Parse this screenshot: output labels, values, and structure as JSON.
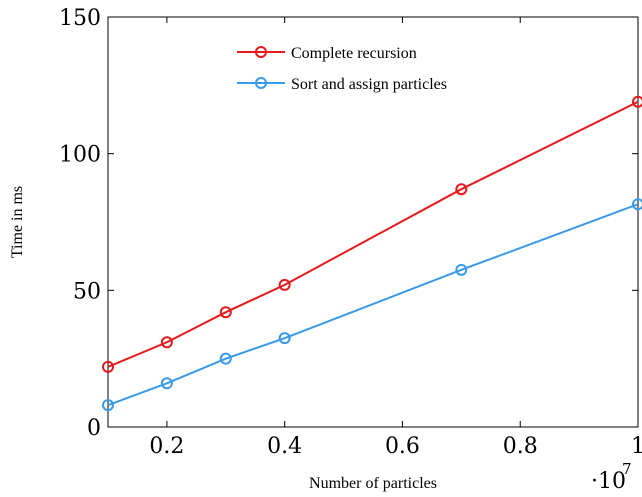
{
  "chart_data": {
    "type": "line",
    "title": "",
    "xlabel": "Number of particles",
    "ylabel": "Time in ms",
    "x_multiplier": {
      "base": "·10",
      "exponent": "7"
    },
    "xlim": [
      0.1,
      1.0
    ],
    "ylim": [
      0,
      150
    ],
    "x_ticks": [
      0.2,
      0.4,
      0.6,
      0.8,
      1.0
    ],
    "x_tick_labels": [
      "0.2",
      "0.4",
      "0.6",
      "0.8",
      "1"
    ],
    "y_ticks": [
      0,
      50,
      100,
      150
    ],
    "y_tick_labels": [
      "0",
      "50",
      "100",
      "150"
    ],
    "grid": false,
    "legend_position": "top-center",
    "series": [
      {
        "name": "Complete recursion",
        "color": "#e41a1c",
        "marker": "circle",
        "x": [
          0.1,
          0.2,
          0.3,
          0.4,
          0.7,
          1.0
        ],
        "y": [
          22,
          31,
          42,
          52,
          87,
          119
        ]
      },
      {
        "name": "Sort and assign particles",
        "color": "#3a9ae8",
        "marker": "circle",
        "x": [
          0.1,
          0.2,
          0.3,
          0.4,
          0.7,
          1.0
        ],
        "y": [
          8,
          16,
          25,
          32.5,
          57.5,
          81.5
        ]
      }
    ]
  }
}
